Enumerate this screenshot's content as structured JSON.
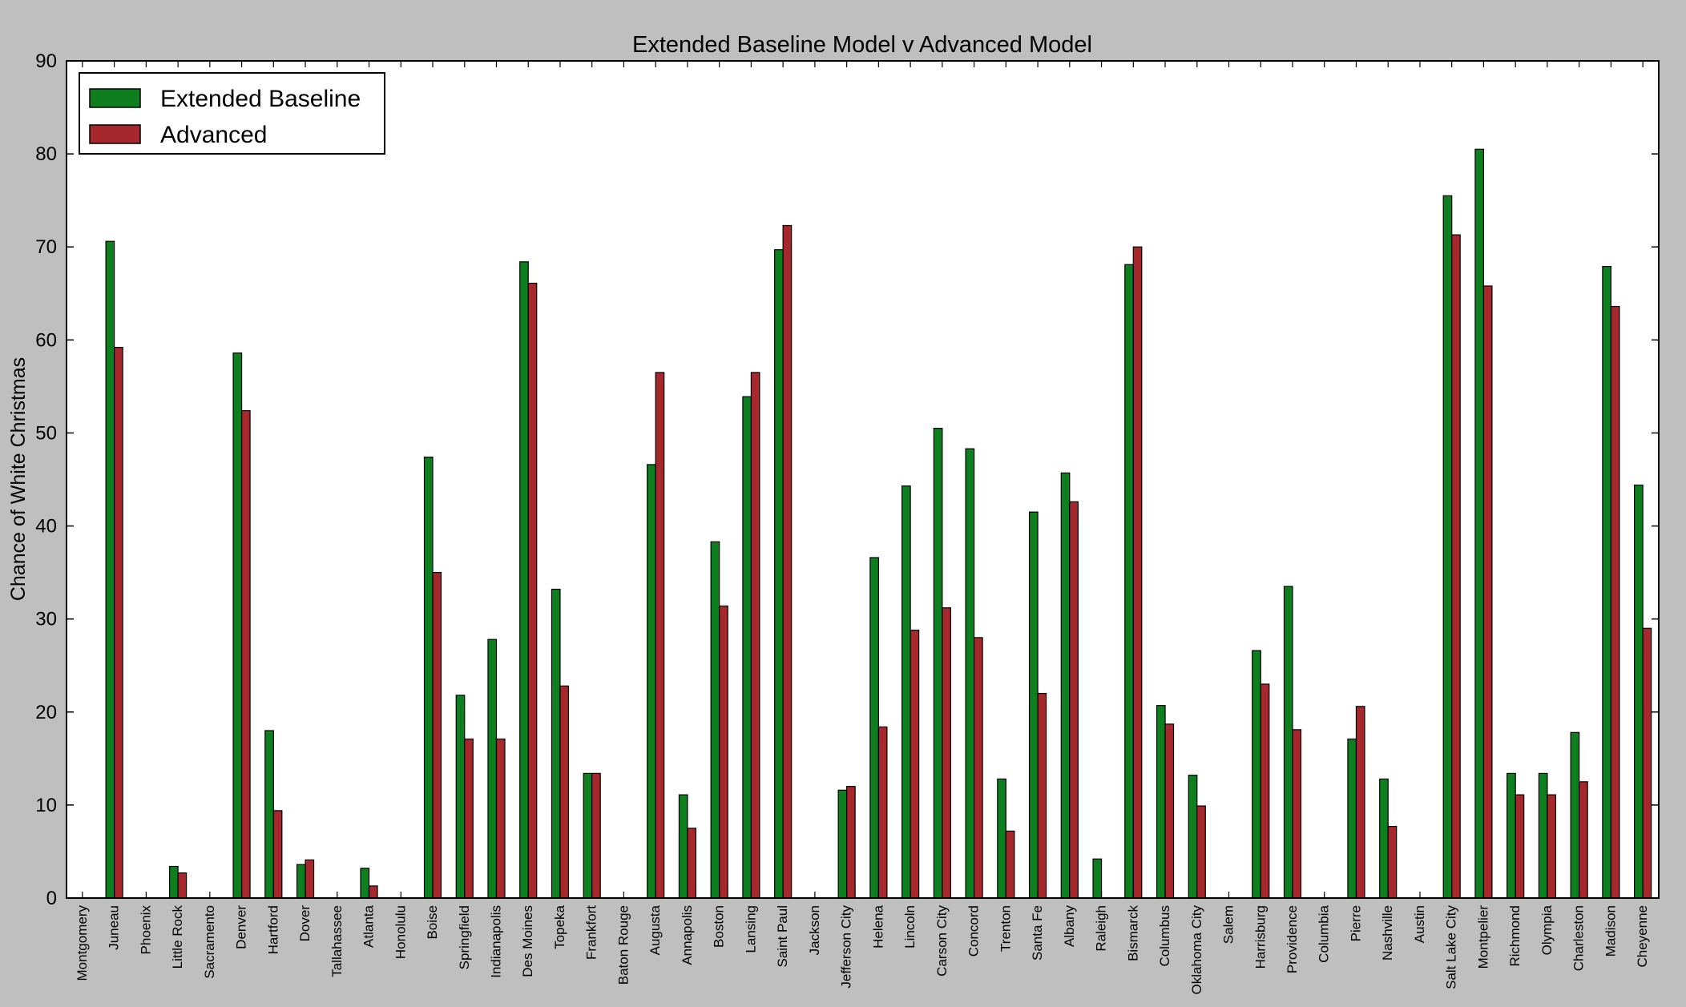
{
  "chart_data": {
    "type": "bar",
    "title": "Extended Baseline Model v Advanced Model",
    "xlabel": "",
    "ylabel": "Chance of White Christmas",
    "ylim": [
      0,
      90
    ],
    "yticks": [
      0,
      10,
      20,
      30,
      40,
      50,
      60,
      70,
      80,
      90
    ],
    "grid": false,
    "legend_position": "top-left",
    "categories": [
      "Montgomery",
      "Juneau",
      "Phoenix",
      "Little Rock",
      "Sacramento",
      "Denver",
      "Hartford",
      "Dover",
      "Tallahassee",
      "Atlanta",
      "Honolulu",
      "Boise",
      "Springfield",
      "Indianapolis",
      "Des Moines",
      "Topeka",
      "Frankfort",
      "Baton Rouge",
      "Augusta",
      "Annapolis",
      "Boston",
      "Lansing",
      "Saint Paul",
      "Jackson",
      "Jefferson City",
      "Helena",
      "Lincoln",
      "Carson City",
      "Concord",
      "Trenton",
      "Santa Fe",
      "Albany",
      "Raleigh",
      "Bismarck",
      "Columbus",
      "Oklahoma City",
      "Salem",
      "Harrisburg",
      "Providence",
      "Columbia",
      "Pierre",
      "Nashville",
      "Austin",
      "Salt Lake City",
      "Montpelier",
      "Richmond",
      "Olympia",
      "Charleston",
      "Madison",
      "Cheyenne"
    ],
    "series": [
      {
        "name": "Extended Baseline",
        "color": "#0e7f1e",
        "values": [
          0,
          70.6,
          0,
          3.4,
          0,
          58.6,
          18.0,
          3.6,
          0,
          3.2,
          0,
          47.4,
          21.8,
          27.8,
          68.4,
          33.2,
          13.4,
          0,
          46.6,
          11.1,
          38.3,
          53.9,
          69.7,
          0,
          11.6,
          36.6,
          44.3,
          50.5,
          48.3,
          12.8,
          41.5,
          45.7,
          4.2,
          68.1,
          20.7,
          13.2,
          0,
          26.6,
          33.5,
          0,
          17.1,
          12.8,
          0,
          75.5,
          80.5,
          13.4,
          13.4,
          17.8,
          67.9,
          44.4
        ]
      },
      {
        "name": "Advanced",
        "color": "#a6272c",
        "values": [
          0,
          59.2,
          0,
          2.7,
          0,
          52.4,
          9.4,
          4.1,
          0,
          1.3,
          0,
          35.0,
          17.1,
          17.1,
          66.1,
          22.8,
          13.4,
          0,
          56.5,
          7.5,
          31.4,
          56.5,
          72.3,
          0,
          12.0,
          18.4,
          28.8,
          31.2,
          28.0,
          7.2,
          22.0,
          42.6,
          0,
          70.0,
          18.7,
          9.9,
          0,
          23.0,
          18.1,
          0,
          20.6,
          7.7,
          0,
          71.3,
          65.8,
          11.1,
          11.1,
          12.5,
          63.6,
          29.0
        ]
      }
    ]
  }
}
